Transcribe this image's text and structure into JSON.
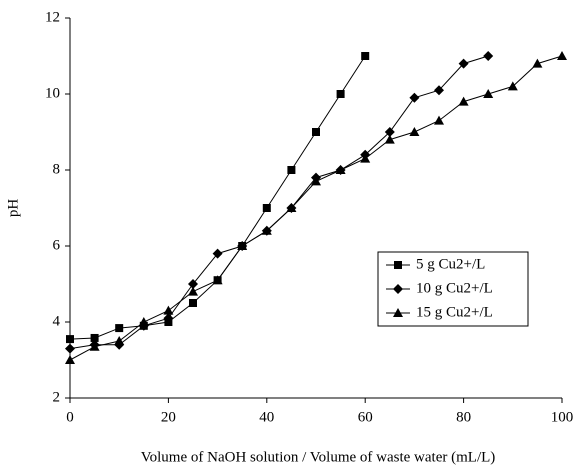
{
  "chart_data": {
    "type": "line",
    "x_label": "Volume of NaOH solution / Volume of waste water (mL/L)",
    "y_label": "pH",
    "xlim": [
      0,
      100
    ],
    "xticks": [
      0,
      20,
      40,
      60,
      80,
      100
    ],
    "ylim": [
      2,
      12
    ],
    "yticks": [
      2,
      4,
      6,
      8,
      10,
      12
    ],
    "legend": "right",
    "series": [
      {
        "name": "5 g Cu2+/L",
        "color": "#000000",
        "marker": "square",
        "x": [
          0,
          5,
          10,
          15,
          20,
          25,
          30,
          35,
          40,
          45,
          50,
          55,
          60
        ],
        "values": [
          3.55,
          3.58,
          3.84,
          3.9,
          4.0,
          4.5,
          5.1,
          6.0,
          7.0,
          8.0,
          9.0,
          10.0,
          11.0
        ]
      },
      {
        "name": "10 g Cu2+/L",
        "color": "#000000",
        "marker": "diamond",
        "x": [
          0,
          5,
          10,
          15,
          20,
          25,
          30,
          35,
          40,
          45,
          50,
          55,
          60,
          65,
          70,
          75,
          80,
          85
        ],
        "values": [
          3.3,
          3.4,
          3.4,
          3.9,
          4.1,
          5.0,
          5.8,
          6.0,
          6.4,
          7.0,
          7.8,
          8.0,
          8.4,
          9.0,
          9.9,
          10.1,
          10.8,
          11.0
        ]
      },
      {
        "name": "15 g Cu2+/L",
        "color": "#000000",
        "marker": "triangle",
        "x": [
          0,
          5,
          10,
          15,
          20,
          25,
          30,
          35,
          40,
          45,
          50,
          55,
          60,
          65,
          70,
          75,
          80,
          85,
          90,
          95,
          100
        ],
        "values": [
          3.0,
          3.35,
          3.5,
          4.0,
          4.3,
          4.8,
          5.1,
          6.0,
          6.4,
          7.0,
          7.7,
          8.0,
          8.3,
          8.8,
          9.0,
          9.3,
          9.8,
          10.0,
          10.2,
          10.8,
          11.0
        ]
      }
    ]
  }
}
